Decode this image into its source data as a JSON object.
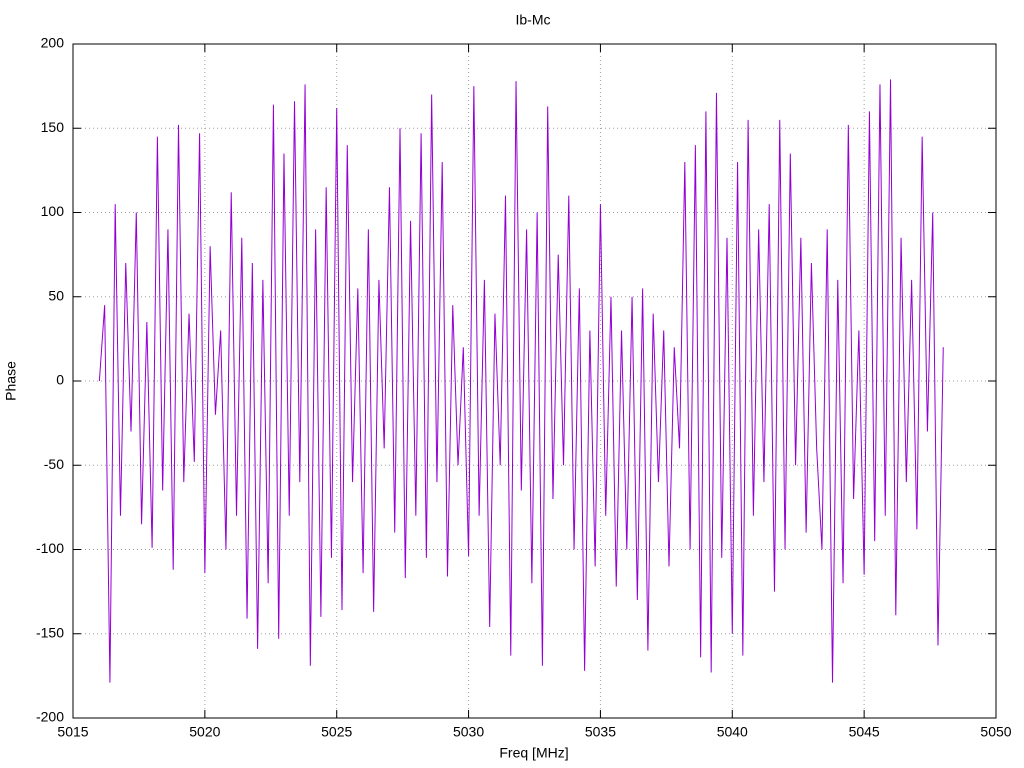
{
  "chart_data": {
    "type": "line",
    "title": "Ib-Mc",
    "xlabel": "Freq [MHz]",
    "ylabel": "Phase",
    "x": [
      5016,
      5016.2,
      5016.4,
      5016.6,
      5016.8,
      5017,
      5017.2,
      5017.4,
      5017.6,
      5017.8,
      5018,
      5018.2,
      5018.4,
      5018.6,
      5018.8,
      5019,
      5019.2,
      5019.4,
      5019.6,
      5019.8,
      5020,
      5020.2,
      5020.4,
      5020.6,
      5020.8,
      5021,
      5021.2,
      5021.4,
      5021.6,
      5021.8,
      5022,
      5022.2,
      5022.4,
      5022.6,
      5022.8,
      5023,
      5023.2,
      5023.4,
      5023.6,
      5023.8,
      5024,
      5024.2,
      5024.4,
      5024.6,
      5024.8,
      5025,
      5025.2,
      5025.4,
      5025.6,
      5025.8,
      5026,
      5026.2,
      5026.4,
      5026.6,
      5026.8,
      5027,
      5027.2,
      5027.4,
      5027.6,
      5027.8,
      5028,
      5028.2,
      5028.4,
      5028.6,
      5028.8,
      5029,
      5029.2,
      5029.4,
      5029.6,
      5029.8,
      5030,
      5030.2,
      5030.4,
      5030.6,
      5030.8,
      5031,
      5031.2,
      5031.4,
      5031.6,
      5031.8,
      5032,
      5032.2,
      5032.4,
      5032.6,
      5032.8,
      5033,
      5033.2,
      5033.4,
      5033.6,
      5033.8,
      5034,
      5034.2,
      5034.4,
      5034.6,
      5034.8,
      5035,
      5035.2,
      5035.4,
      5035.6,
      5035.8,
      5036,
      5036.2,
      5036.4,
      5036.6,
      5036.8,
      5037,
      5037.2,
      5037.4,
      5037.6,
      5037.8,
      5038,
      5038.2,
      5038.4,
      5038.6,
      5038.8,
      5039,
      5039.2,
      5039.4,
      5039.6,
      5039.8,
      5040,
      5040.2,
      5040.4,
      5040.6,
      5040.8,
      5041,
      5041.2,
      5041.4,
      5041.6,
      5041.8,
      5042,
      5042.2,
      5042.4,
      5042.6,
      5042.8,
      5043,
      5043.2,
      5043.4,
      5043.6,
      5043.8,
      5044,
      5044.2,
      5044.4,
      5044.6,
      5044.8,
      5045,
      5045.2,
      5045.4,
      5045.6,
      5045.8,
      5046,
      5046.2,
      5046.4,
      5046.6,
      5046.8,
      5047,
      5047.2,
      5047.4,
      5047.6,
      5047.8,
      5048
    ],
    "series": [
      {
        "color": "#9400d3",
        "values": [
          0,
          45,
          -179,
          105,
          -80,
          70,
          -30,
          100,
          -85,
          35,
          -99,
          145,
          -65,
          90,
          -112,
          152,
          -60,
          40,
          -48,
          147,
          -114,
          80,
          -20,
          30,
          -100,
          112,
          -80,
          85,
          -141,
          70,
          -159,
          60,
          -120,
          164,
          -153,
          135,
          -80,
          166,
          -60,
          176,
          -169,
          90,
          -140,
          115,
          -105,
          162,
          -136,
          140,
          -60,
          55,
          -114,
          90,
          -137,
          60,
          -40,
          115,
          -90,
          150,
          -117,
          95,
          -80,
          147,
          -105,
          170,
          -60,
          130,
          -116,
          45,
          -50,
          20,
          -104,
          175,
          -80,
          60,
          -146,
          40,
          -50,
          110,
          -163,
          178,
          -65,
          90,
          -120,
          100,
          -169,
          163,
          -70,
          75,
          -50,
          110,
          -100,
          55,
          -172,
          30,
          -110,
          105,
          -80,
          50,
          -122,
          30,
          -100,
          50,
          -130,
          55,
          -160,
          40,
          -60,
          30,
          -110,
          20,
          -40,
          130,
          -100,
          140,
          -164,
          160,
          -173,
          171,
          -105,
          85,
          -150,
          130,
          -163,
          155,
          -80,
          90,
          -60,
          105,
          -125,
          155,
          -100,
          135,
          -50,
          85,
          -90,
          70,
          -40,
          -100,
          90,
          -179,
          60,
          -120,
          152,
          -70,
          30,
          -115,
          160,
          -95,
          176,
          -80,
          179,
          -139,
          85,
          -60,
          60,
          -88,
          145,
          -30,
          100,
          -157,
          20
        ]
      }
    ],
    "xlim": [
      5015,
      5050
    ],
    "xticks": [
      5015,
      5020,
      5025,
      5030,
      5035,
      5040,
      5045,
      5050
    ],
    "ylim": [
      -200,
      200
    ],
    "yticks": [
      -200,
      -150,
      -100,
      -50,
      0,
      50,
      100,
      150,
      200
    ],
    "grid": true
  }
}
